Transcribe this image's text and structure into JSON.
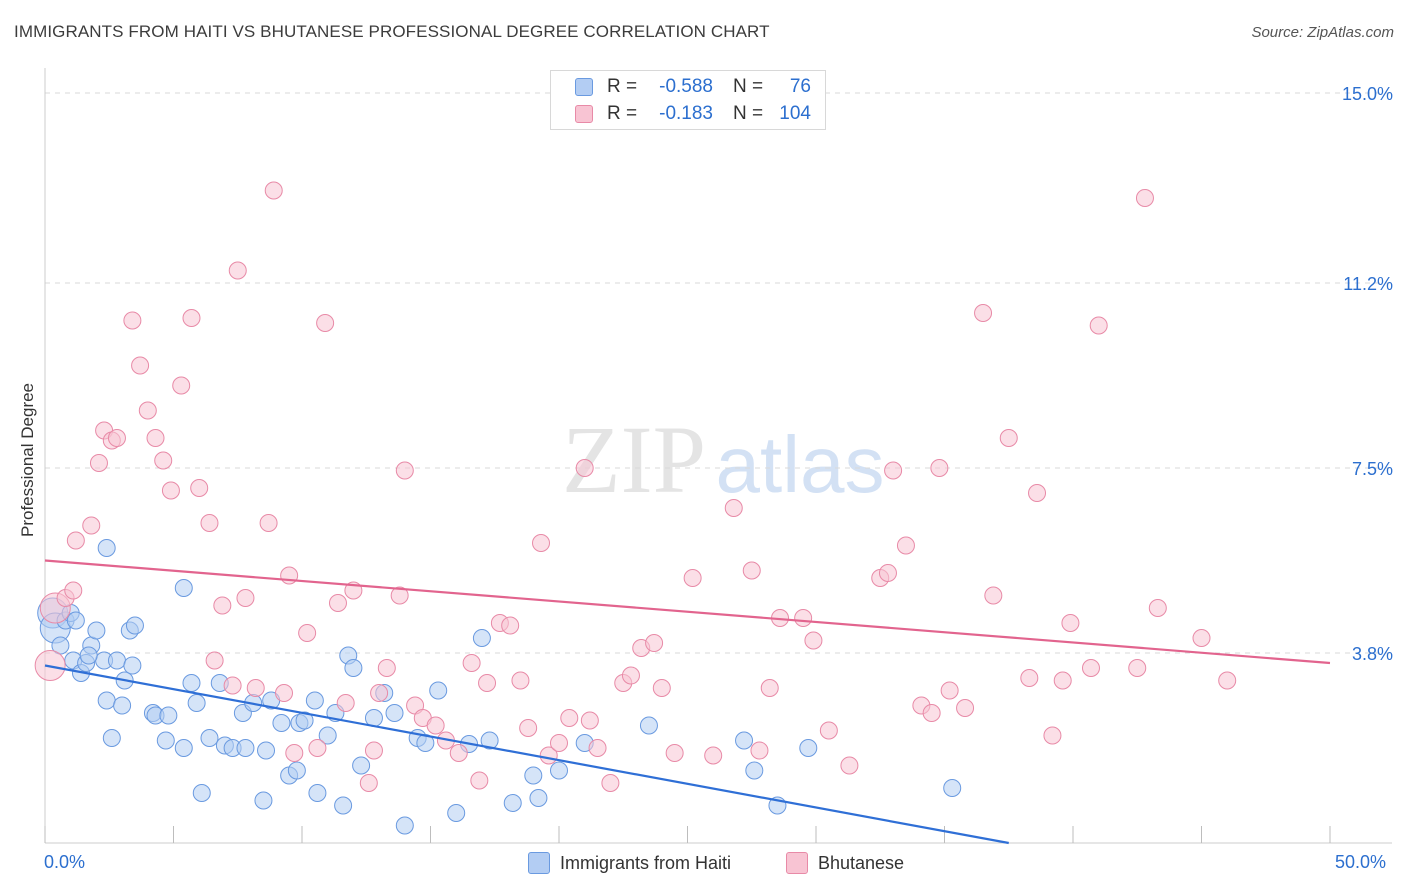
{
  "header": {
    "title": "IMMIGRANTS FROM HAITI VS BHUTANESE PROFESSIONAL DEGREE CORRELATION CHART",
    "source": "Source: ZipAtlas.com"
  },
  "watermark": {
    "zip": "ZIP",
    "atlas": "atlas"
  },
  "legend": {
    "r_label": "R =",
    "n_label": "N =",
    "rows": [
      {
        "name": "Immigrants from Haiti",
        "r": "-0.588",
        "n": "76",
        "color": "#6a9ae0"
      },
      {
        "name": "Bhutanese",
        "r": "-0.183",
        "n": "104",
        "color": "#e88aa7"
      }
    ]
  },
  "colors": {
    "blue_fill": "#b3cdf3",
    "blue_stroke": "#6a9ae0",
    "blue_line": "#2f6fd6",
    "pink_fill": "#f8c4d3",
    "pink_stroke": "#e88aa7",
    "pink_line": "#e2648e",
    "accent_text": "#2c6fcf"
  },
  "chart_data": {
    "type": "scatter",
    "title": "IMMIGRANTS FROM HAITI VS BHUTANESE PROFESSIONAL DEGREE CORRELATION CHART",
    "xlabel": "",
    "ylabel": "Professional Degree",
    "xlim": [
      0,
      50
    ],
    "ylim": [
      0,
      15.5
    ],
    "x_tick_labels": [
      "0.0%",
      "50.0%"
    ],
    "y_ticks": [
      3.8,
      7.5,
      11.2,
      15.0
    ],
    "y_tick_labels": [
      "3.8%",
      "7.5%",
      "11.2%",
      "15.0%"
    ],
    "grid": true,
    "series": [
      {
        "name": "Immigrants from Haiti",
        "r": -0.588,
        "n": 76,
        "trend": {
          "x": [
            0,
            37.5
          ],
          "y": [
            3.55,
            0
          ]
        },
        "points": [
          [
            0.3,
            4.6
          ],
          [
            0.4,
            4.3
          ],
          [
            0.6,
            3.95
          ],
          [
            0.8,
            4.45
          ],
          [
            1,
            4.6
          ],
          [
            1.1,
            3.65
          ],
          [
            1.2,
            4.45
          ],
          [
            1.4,
            3.4
          ],
          [
            1.6,
            3.6
          ],
          [
            1.8,
            3.95
          ],
          [
            2,
            4.25
          ],
          [
            2.3,
            3.65
          ],
          [
            2.8,
            3.65
          ],
          [
            3.1,
            3.25
          ],
          [
            3.4,
            3.55
          ],
          [
            1.7,
            3.75
          ],
          [
            2.4,
            2.85
          ],
          [
            2.6,
            2.1
          ],
          [
            3,
            2.75
          ],
          [
            3.3,
            4.25
          ],
          [
            3.5,
            4.35
          ],
          [
            4.2,
            2.6
          ],
          [
            4.3,
            2.55
          ],
          [
            4.7,
            2.05
          ],
          [
            4.8,
            2.55
          ],
          [
            5.4,
            1.9
          ],
          [
            5.7,
            3.2
          ],
          [
            5.9,
            2.8
          ],
          [
            6.1,
            1.0
          ],
          [
            6.4,
            2.1
          ],
          [
            6.8,
            3.2
          ],
          [
            7.0,
            1.95
          ],
          [
            7.3,
            1.9
          ],
          [
            7.7,
            2.6
          ],
          [
            7.8,
            1.9
          ],
          [
            8.1,
            2.8
          ],
          [
            8.5,
            0.85
          ],
          [
            8.6,
            1.85
          ],
          [
            8.8,
            2.85
          ],
          [
            9.2,
            2.4
          ],
          [
            9.5,
            1.35
          ],
          [
            9.8,
            1.45
          ],
          [
            9.9,
            2.4
          ],
          [
            10.1,
            2.45
          ],
          [
            10.5,
            2.85
          ],
          [
            10.6,
            1.0
          ],
          [
            11.0,
            2.15
          ],
          [
            11.3,
            2.6
          ],
          [
            11.6,
            0.75
          ],
          [
            11.8,
            3.75
          ],
          [
            12.0,
            3.5
          ],
          [
            12.3,
            1.55
          ],
          [
            12.8,
            2.5
          ],
          [
            13.2,
            3.0
          ],
          [
            13.6,
            2.6
          ],
          [
            14.0,
            0.35
          ],
          [
            14.5,
            2.1
          ],
          [
            14.8,
            2.0
          ],
          [
            15.3,
            3.05
          ],
          [
            16.0,
            0.6
          ],
          [
            16.5,
            1.98
          ],
          [
            17.0,
            4.1
          ],
          [
            17.3,
            2.05
          ],
          [
            18.2,
            0.8
          ],
          [
            19.0,
            1.35
          ],
          [
            19.2,
            0.9
          ],
          [
            20.0,
            1.45
          ],
          [
            21.0,
            2.0
          ],
          [
            23.5,
            2.35
          ],
          [
            27.2,
            2.05
          ],
          [
            27.6,
            1.45
          ],
          [
            28.5,
            0.75
          ],
          [
            29.7,
            1.9
          ],
          [
            35.3,
            1.1
          ],
          [
            2.4,
            5.9
          ],
          [
            5.4,
            5.1
          ]
        ]
      },
      {
        "name": "Bhutanese",
        "r": -0.183,
        "n": 104,
        "trend": {
          "x": [
            0,
            50
          ],
          "y": [
            5.65,
            3.6
          ]
        },
        "points": [
          [
            0.2,
            3.55
          ],
          [
            0.4,
            4.7
          ],
          [
            0.8,
            4.9
          ],
          [
            1.1,
            5.05
          ],
          [
            1.2,
            6.05
          ],
          [
            1.8,
            6.35
          ],
          [
            2.1,
            7.6
          ],
          [
            2.3,
            8.25
          ],
          [
            2.6,
            8.05
          ],
          [
            2.8,
            8.1
          ],
          [
            3.4,
            10.45
          ],
          [
            3.7,
            9.55
          ],
          [
            4.0,
            8.65
          ],
          [
            4.3,
            8.1
          ],
          [
            4.6,
            7.65
          ],
          [
            4.9,
            7.05
          ],
          [
            5.3,
            9.15
          ],
          [
            5.7,
            10.5
          ],
          [
            6.0,
            7.1
          ],
          [
            6.4,
            6.4
          ],
          [
            6.6,
            3.65
          ],
          [
            6.9,
            4.75
          ],
          [
            7.3,
            3.15
          ],
          [
            7.5,
            11.45
          ],
          [
            7.8,
            4.9
          ],
          [
            8.2,
            3.1
          ],
          [
            8.7,
            6.4
          ],
          [
            8.9,
            13.05
          ],
          [
            9.3,
            3.0
          ],
          [
            9.5,
            5.35
          ],
          [
            9.7,
            1.8
          ],
          [
            10.2,
            4.2
          ],
          [
            10.6,
            1.9
          ],
          [
            10.9,
            10.4
          ],
          [
            11.4,
            4.8
          ],
          [
            11.7,
            2.8
          ],
          [
            12.0,
            5.05
          ],
          [
            12.6,
            1.2
          ],
          [
            12.8,
            1.85
          ],
          [
            13.0,
            3.0
          ],
          [
            13.3,
            3.5
          ],
          [
            13.8,
            4.95
          ],
          [
            14.0,
            7.45
          ],
          [
            14.4,
            2.75
          ],
          [
            14.7,
            2.5
          ],
          [
            15.2,
            2.35
          ],
          [
            15.6,
            2.05
          ],
          [
            16.1,
            1.8
          ],
          [
            16.6,
            3.6
          ],
          [
            16.9,
            1.25
          ],
          [
            17.2,
            3.2
          ],
          [
            17.7,
            4.4
          ],
          [
            18.1,
            4.35
          ],
          [
            18.5,
            3.25
          ],
          [
            18.8,
            2.3
          ],
          [
            19.3,
            6.0
          ],
          [
            19.6,
            1.75
          ],
          [
            20.0,
            2.0
          ],
          [
            20.4,
            2.5
          ],
          [
            21.0,
            7.5
          ],
          [
            21.2,
            2.45
          ],
          [
            21.5,
            1.9
          ],
          [
            22.0,
            1.2
          ],
          [
            22.5,
            3.2
          ],
          [
            22.8,
            3.35
          ],
          [
            23.2,
            3.9
          ],
          [
            23.7,
            4.0
          ],
          [
            24.0,
            3.1
          ],
          [
            24.5,
            1.8
          ],
          [
            25.2,
            5.3
          ],
          [
            26.0,
            1.75
          ],
          [
            26.8,
            6.7
          ],
          [
            27.5,
            5.45
          ],
          [
            27.8,
            1.85
          ],
          [
            28.2,
            3.1
          ],
          [
            28.6,
            4.5
          ],
          [
            29.5,
            4.5
          ],
          [
            29.9,
            4.05
          ],
          [
            30.5,
            2.25
          ],
          [
            31.3,
            1.55
          ],
          [
            32.5,
            5.3
          ],
          [
            32.8,
            5.4
          ],
          [
            33.0,
            7.45
          ],
          [
            33.5,
            5.95
          ],
          [
            34.1,
            2.75
          ],
          [
            34.5,
            2.6
          ],
          [
            34.8,
            7.5
          ],
          [
            35.2,
            3.05
          ],
          [
            35.8,
            2.7
          ],
          [
            36.5,
            10.6
          ],
          [
            36.9,
            4.95
          ],
          [
            37.5,
            8.1
          ],
          [
            38.3,
            3.3
          ],
          [
            38.6,
            7.0
          ],
          [
            39.2,
            2.15
          ],
          [
            39.6,
            3.25
          ],
          [
            39.9,
            4.4
          ],
          [
            40.7,
            3.5
          ],
          [
            41.0,
            10.35
          ],
          [
            42.5,
            3.5
          ],
          [
            42.8,
            12.9
          ],
          [
            43.3,
            4.7
          ],
          [
            45.0,
            4.1
          ],
          [
            46.0,
            3.25
          ]
        ]
      }
    ]
  }
}
